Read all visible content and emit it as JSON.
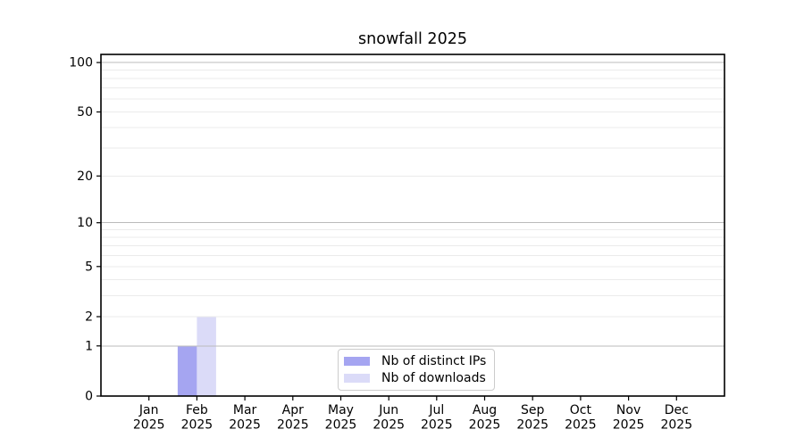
{
  "title": "snowfall 2025",
  "chart_data": {
    "type": "bar",
    "title": "snowfall 2025",
    "x_axis": {
      "months": [
        "Jan",
        "Feb",
        "Mar",
        "Apr",
        "May",
        "Jun",
        "Jul",
        "Aug",
        "Sep",
        "Oct",
        "Nov",
        "Dec"
      ],
      "year": "2025"
    },
    "categories": [
      "Jan 2025",
      "Feb 2025",
      "Mar 2025",
      "Apr 2025",
      "May 2025",
      "Jun 2025",
      "Jul 2025",
      "Aug 2025",
      "Sep 2025",
      "Oct 2025",
      "Nov 2025",
      "Dec 2025"
    ],
    "series": [
      {
        "name": "Nb of distinct IPs",
        "color": "#a5a5f1",
        "values": [
          0,
          1,
          0,
          0,
          0,
          0,
          0,
          0,
          0,
          0,
          0,
          0
        ]
      },
      {
        "name": "Nb of downloads",
        "color": "#dbdbf8",
        "values": [
          0,
          2,
          0,
          0,
          0,
          0,
          0,
          0,
          0,
          0,
          0,
          0
        ]
      }
    ],
    "y_scale": "log1p",
    "ylim": [
      0,
      112
    ],
    "y_tick_values": [
      0,
      1,
      2,
      5,
      10,
      20,
      50,
      100
    ],
    "grid": {
      "major_values": [
        1,
        10,
        100
      ],
      "minor_values": [
        2,
        3,
        4,
        5,
        6,
        7,
        8,
        9,
        20,
        30,
        40,
        50,
        60,
        70,
        80,
        90
      ],
      "major_color": "#bbbbbb",
      "minor_color": "#ebebeb"
    },
    "legend_position": "inside-bottom-center",
    "text_color": "#000000",
    "spine_color": "#000000"
  }
}
